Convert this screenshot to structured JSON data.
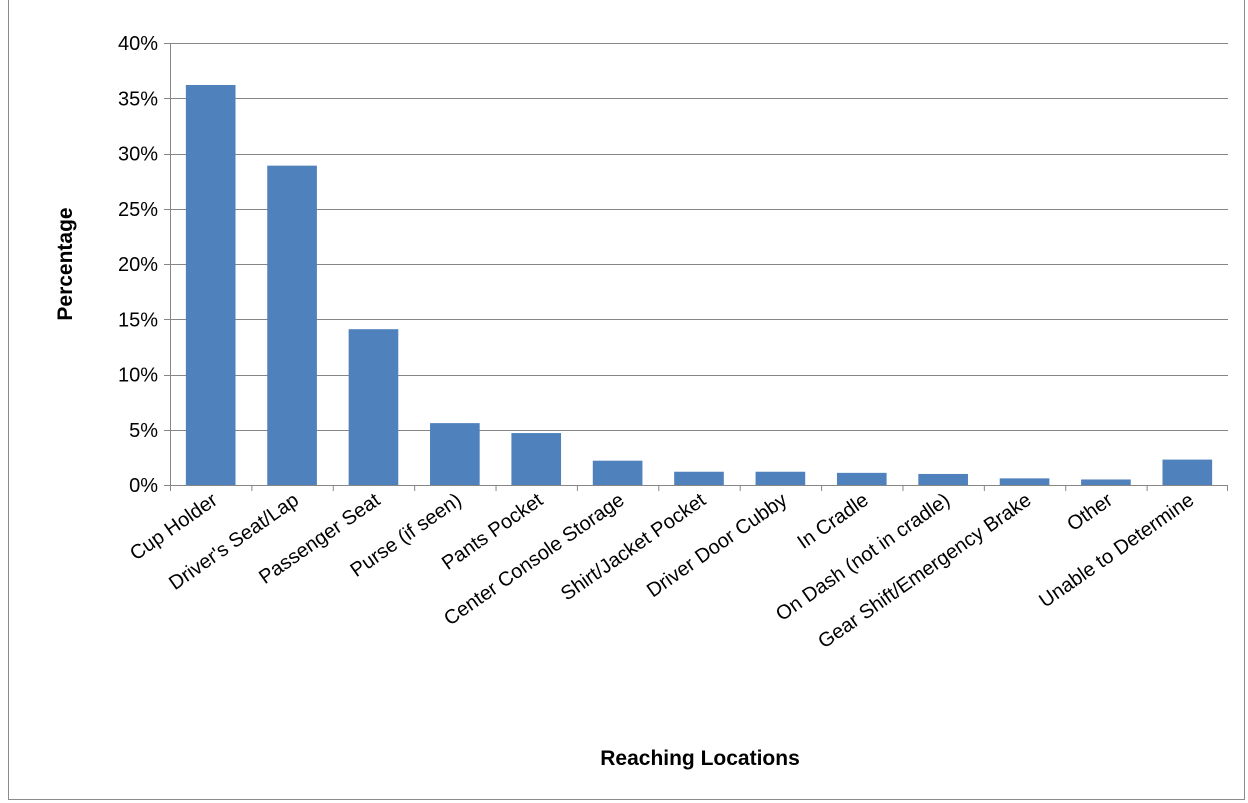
{
  "chart_data": {
    "type": "bar",
    "title": "",
    "xlabel": "Reaching Locations",
    "ylabel": "Percentage",
    "ylim": [
      0,
      40
    ],
    "y_tick_step": 5,
    "y_tick_format": "percent",
    "grid": true,
    "legend": "none",
    "bar_color": "#4f81bd",
    "grid_color": "#868686",
    "categories": [
      "Cup Holder",
      "Driver's Seat/Lap",
      "Passenger Seat",
      "Purse (if seen)",
      "Pants Pocket",
      "Center Console Storage",
      "Shirt/Jacket Pocket",
      "Driver Door Cubby",
      "In Cradle",
      "On Dash (not in cradle)",
      "Gear Shift/Emergency Brake",
      "Other",
      "Unable to Determine"
    ],
    "values": [
      36.2,
      28.9,
      14.1,
      5.6,
      4.7,
      2.2,
      1.2,
      1.2,
      1.1,
      1.0,
      0.6,
      0.5,
      2.3
    ]
  }
}
